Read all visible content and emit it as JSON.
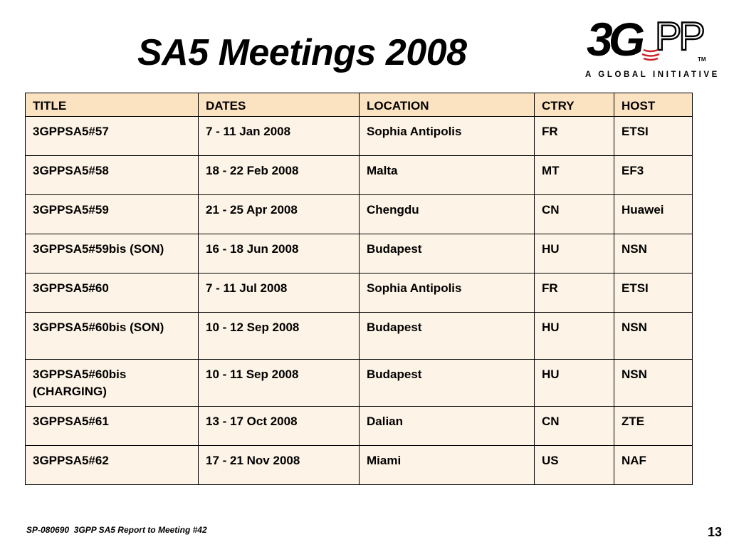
{
  "slide": {
    "title": "SA5 Meetings 2008"
  },
  "logo": {
    "wordmark": "3GPP",
    "trademark": "TM",
    "tagline": "A GLOBAL INITIATIVE"
  },
  "table": {
    "headers": [
      "TITLE",
      "DATES",
      "LOCATION",
      "CTRY",
      "HOST"
    ],
    "rows": [
      [
        "3GPPSA5#57",
        "7 - 11 Jan 2008",
        "Sophia Antipolis",
        "FR",
        "ETSI"
      ],
      [
        "3GPPSA5#58",
        "18 - 22 Feb 2008",
        "Malta",
        "MT",
        "EF3"
      ],
      [
        "3GPPSA5#59",
        "21 - 25 Apr 2008",
        "Chengdu",
        "CN",
        "Huawei"
      ],
      [
        "3GPPSA5#59bis (SON)",
        "16 - 18 Jun 2008",
        "Budapest",
        "HU",
        "NSN"
      ],
      [
        "3GPPSA5#60",
        "7 - 11 Jul 2008",
        "Sophia Antipolis",
        "FR",
        "ETSI"
      ],
      [
        "3GPPSA5#60bis (SON)",
        "10 - 12 Sep 2008",
        "Budapest",
        "HU",
        "NSN"
      ],
      [
        "3GPPSA5#60bis (CHARGING)",
        "10 - 11 Sep 2008",
        "Budapest",
        "HU",
        "NSN"
      ],
      [
        "3GPPSA5#61",
        "13 - 17 Oct 2008",
        "Dalian",
        "CN",
        "ZTE"
      ],
      [
        "3GPPSA5#62",
        "17 - 21 Nov 2008",
        "Miami",
        "US",
        "NAF"
      ]
    ]
  },
  "footer": {
    "text": "SP-080690  3GPP SA5 Report to Meeting #42",
    "page_number": "13"
  },
  "colors": {
    "header_fill": "#fbe3c2",
    "cell_fill": "#fdf3e6",
    "border": "#000000",
    "logo_red": "#cc2229"
  }
}
